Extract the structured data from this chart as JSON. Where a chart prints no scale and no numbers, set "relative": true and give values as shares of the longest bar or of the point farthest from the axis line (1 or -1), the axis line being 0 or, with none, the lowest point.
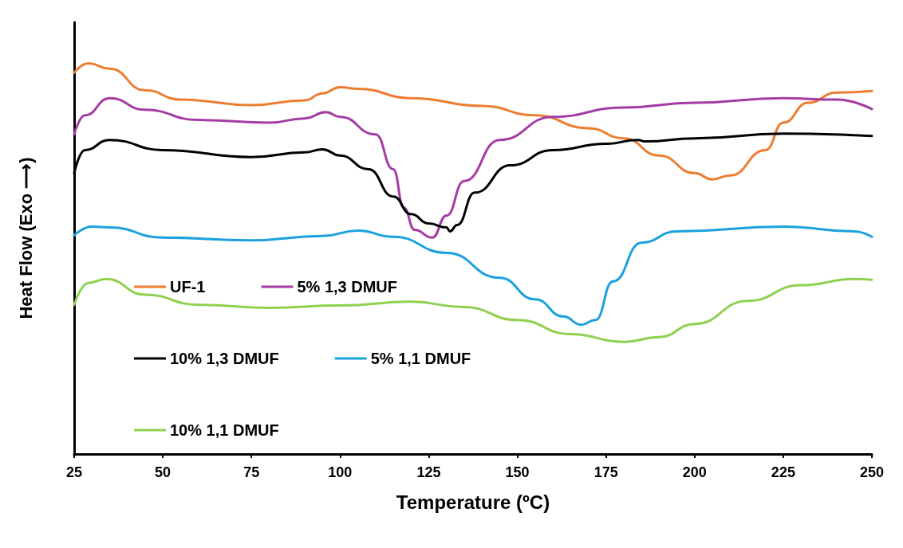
{
  "chart_data": {
    "type": "line",
    "relative": true,
    "xlabel": "Temperature (ºC)",
    "ylabel": "Heat Flow (Exo ⟶)",
    "xlim": [
      25,
      250
    ],
    "xticks": [
      25,
      50,
      75,
      100,
      125,
      150,
      175,
      200,
      225,
      250
    ],
    "grid": false,
    "legend": "bottom left",
    "marker": "none",
    "line_style": "solid",
    "series": [
      {
        "name": "UF-1",
        "color": "#ed7d31",
        "x": [
          25,
          29,
          35,
          45,
          55,
          75,
          90,
          95,
          100,
          105,
          120,
          140,
          155,
          170,
          180,
          190,
          200,
          205,
          210,
          220,
          225,
          232,
          240,
          250
        ],
        "values": [
          0.976,
          1.0,
          0.986,
          0.931,
          0.907,
          0.893,
          0.905,
          0.923,
          0.939,
          0.935,
          0.911,
          0.891,
          0.867,
          0.834,
          0.808,
          0.764,
          0.719,
          0.703,
          0.713,
          0.778,
          0.848,
          0.899,
          0.925,
          0.929
        ]
      },
      {
        "name": "5% 1,3 DMUF",
        "color": "#a43ca4",
        "x": [
          25,
          28,
          35,
          45,
          60,
          80,
          90,
          96,
          100,
          110,
          115,
          118,
          121,
          126,
          130,
          135,
          145,
          160,
          180,
          200,
          225,
          240,
          250
        ],
        "values": [
          0.818,
          0.867,
          0.911,
          0.881,
          0.855,
          0.848,
          0.859,
          0.875,
          0.863,
          0.818,
          0.729,
          0.63,
          0.574,
          0.554,
          0.61,
          0.699,
          0.804,
          0.863,
          0.887,
          0.899,
          0.911,
          0.907,
          0.883
        ]
      },
      {
        "name": "10% 1,3 DMUF",
        "color": "#000000",
        "x": [
          25,
          28,
          35,
          50,
          75,
          90,
          95,
          100,
          108,
          115,
          120,
          125,
          130,
          131,
          133,
          138,
          148,
          160,
          175,
          184,
          186,
          200,
          225,
          250
        ],
        "values": [
          0.719,
          0.778,
          0.804,
          0.778,
          0.76,
          0.772,
          0.78,
          0.764,
          0.729,
          0.659,
          0.614,
          0.59,
          0.58,
          0.57,
          0.586,
          0.669,
          0.739,
          0.778,
          0.794,
          0.804,
          0.8,
          0.808,
          0.82,
          0.814
        ]
      },
      {
        "name": "5% 1,1 DMUF",
        "color": "#1ba1dc",
        "x": [
          25,
          30,
          35,
          50,
          75,
          95,
          105,
          115,
          130,
          145,
          155,
          163,
          168,
          172,
          177,
          185,
          195,
          225,
          245,
          250
        ],
        "values": [
          0.56,
          0.582,
          0.58,
          0.554,
          0.547,
          0.558,
          0.572,
          0.556,
          0.515,
          0.451,
          0.396,
          0.352,
          0.331,
          0.343,
          0.442,
          0.541,
          0.57,
          0.582,
          0.57,
          0.556
        ]
      },
      {
        "name": "10% 1,1 DMUF",
        "color": "#8fd14f",
        "x": [
          25,
          29,
          34,
          45,
          60,
          80,
          100,
          120,
          135,
          150,
          165,
          180,
          190,
          200,
          215,
          230,
          245,
          250
        ],
        "values": [
          0.382,
          0.438,
          0.448,
          0.408,
          0.382,
          0.374,
          0.38,
          0.39,
          0.376,
          0.343,
          0.307,
          0.287,
          0.299,
          0.333,
          0.392,
          0.432,
          0.448,
          0.446
        ]
      }
    ]
  }
}
